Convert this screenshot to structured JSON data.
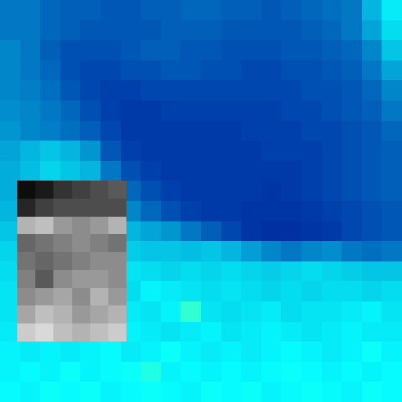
{
  "chart_data": {
    "type": "heatmap",
    "color": "jet",
    "zlim": [
      0,
      1
    ],
    "tick_labels": false,
    "cells": [
      [
        0.2,
        0.2,
        0.18,
        0.17,
        0.17,
        0.16,
        0.16,
        0.17,
        0.17,
        0.18,
        0.18,
        0.17,
        0.17,
        0.16,
        0.17,
        0.18,
        0.19,
        0.2,
        0.28,
        0.35
      ],
      [
        0.2,
        0.2,
        0.18,
        0.17,
        0.16,
        0.16,
        0.16,
        0.16,
        0.17,
        0.17,
        0.17,
        0.16,
        0.16,
        0.16,
        0.16,
        0.17,
        0.18,
        0.2,
        0.26,
        0.33
      ],
      [
        0.22,
        0.2,
        0.17,
        0.15,
        0.15,
        0.15,
        0.16,
        0.17,
        0.17,
        0.16,
        0.16,
        0.15,
        0.15,
        0.15,
        0.16,
        0.16,
        0.17,
        0.18,
        0.22,
        0.3
      ],
      [
        0.22,
        0.2,
        0.18,
        0.15,
        0.14,
        0.14,
        0.15,
        0.15,
        0.16,
        0.16,
        0.15,
        0.15,
        0.14,
        0.14,
        0.15,
        0.15,
        0.16,
        0.17,
        0.2,
        0.26
      ],
      [
        0.22,
        0.21,
        0.19,
        0.16,
        0.14,
        0.13,
        0.13,
        0.14,
        0.14,
        0.14,
        0.14,
        0.14,
        0.14,
        0.14,
        0.14,
        0.15,
        0.15,
        0.16,
        0.18,
        0.22
      ],
      [
        0.23,
        0.22,
        0.2,
        0.18,
        0.15,
        0.13,
        0.12,
        0.12,
        0.13,
        0.13,
        0.13,
        0.13,
        0.13,
        0.13,
        0.14,
        0.14,
        0.15,
        0.16,
        0.17,
        0.2
      ],
      [
        0.24,
        0.22,
        0.21,
        0.19,
        0.17,
        0.14,
        0.12,
        0.12,
        0.12,
        0.12,
        0.12,
        0.12,
        0.13,
        0.13,
        0.13,
        0.14,
        0.14,
        0.15,
        0.16,
        0.18
      ],
      [
        0.26,
        0.28,
        0.3,
        0.28,
        0.24,
        0.16,
        0.13,
        0.12,
        0.12,
        0.12,
        0.12,
        0.12,
        0.12,
        0.13,
        0.13,
        0.13,
        0.14,
        0.15,
        0.16,
        0.17
      ],
      [
        0.27,
        0.29,
        0.32,
        0.3,
        0.28,
        0.2,
        0.15,
        0.13,
        0.12,
        0.12,
        0.12,
        0.12,
        0.12,
        0.12,
        0.12,
        0.13,
        0.14,
        0.15,
        0.16,
        0.17
      ],
      [
        0.27,
        0.28,
        0.3,
        0.3,
        0.28,
        0.24,
        0.18,
        0.15,
        0.13,
        0.12,
        0.12,
        0.12,
        0.12,
        0.11,
        0.12,
        0.13,
        0.14,
        0.15,
        0.16,
        0.17
      ],
      [
        0.28,
        0.29,
        0.3,
        0.3,
        0.3,
        0.27,
        0.22,
        0.18,
        0.15,
        0.13,
        0.12,
        0.12,
        0.11,
        0.11,
        0.11,
        0.12,
        0.13,
        0.14,
        0.15,
        0.16
      ],
      [
        0.3,
        0.3,
        0.3,
        0.31,
        0.3,
        0.3,
        0.28,
        0.26,
        0.24,
        0.2,
        0.17,
        0.14,
        0.11,
        0.1,
        0.1,
        0.11,
        0.12,
        0.14,
        0.15,
        0.16
      ],
      [
        0.32,
        0.32,
        0.33,
        0.33,
        0.32,
        0.32,
        0.31,
        0.3,
        0.3,
        0.29,
        0.3,
        0.28,
        0.25,
        0.22,
        0.2,
        0.22,
        0.23,
        0.2,
        0.19,
        0.2
      ],
      [
        0.33,
        0.33,
        0.33,
        0.34,
        0.33,
        0.33,
        0.34,
        0.33,
        0.32,
        0.33,
        0.32,
        0.33,
        0.32,
        0.31,
        0.32,
        0.33,
        0.32,
        0.31,
        0.3,
        0.3
      ],
      [
        0.34,
        0.33,
        0.35,
        0.34,
        0.34,
        0.34,
        0.33,
        0.36,
        0.35,
        0.34,
        0.33,
        0.34,
        0.33,
        0.32,
        0.33,
        0.32,
        0.33,
        0.33,
        0.32,
        0.33
      ],
      [
        0.34,
        0.35,
        0.34,
        0.34,
        0.35,
        0.36,
        0.35,
        0.34,
        0.36,
        0.42,
        0.34,
        0.33,
        0.34,
        0.35,
        0.33,
        0.34,
        0.34,
        0.35,
        0.36,
        0.34
      ],
      [
        0.35,
        0.34,
        0.35,
        0.36,
        0.34,
        0.35,
        0.36,
        0.35,
        0.34,
        0.35,
        0.36,
        0.34,
        0.35,
        0.36,
        0.35,
        0.34,
        0.35,
        0.36,
        0.35,
        0.35
      ],
      [
        0.36,
        0.35,
        0.36,
        0.35,
        0.36,
        0.37,
        0.35,
        0.36,
        0.38,
        0.36,
        0.35,
        0.36,
        0.35,
        0.36,
        0.37,
        0.36,
        0.35,
        0.36,
        0.38,
        0.36
      ],
      [
        0.36,
        0.37,
        0.36,
        0.38,
        0.36,
        0.37,
        0.38,
        0.4,
        0.36,
        0.37,
        0.36,
        0.37,
        0.36,
        0.37,
        0.38,
        0.37,
        0.36,
        0.37,
        0.36,
        0.37
      ],
      [
        0.37,
        0.36,
        0.38,
        0.37,
        0.38,
        0.36,
        0.37,
        0.38,
        0.37,
        0.36,
        0.38,
        0.37,
        0.38,
        0.36,
        0.37,
        0.38,
        0.37,
        0.36,
        0.38,
        0.37
      ]
    ],
    "inset": {
      "type": "heatmap",
      "color": "greys",
      "zlim": [
        0,
        1
      ],
      "cells": [
        [
          0.05,
          0.1,
          0.2,
          0.25,
          0.3,
          0.35
        ],
        [
          0.15,
          0.25,
          0.3,
          0.3,
          0.3,
          0.3
        ],
        [
          0.7,
          0.75,
          0.6,
          0.55,
          0.6,
          0.7
        ],
        [
          0.4,
          0.45,
          0.5,
          0.55,
          0.5,
          0.45
        ],
        [
          0.45,
          0.4,
          0.45,
          0.5,
          0.55,
          0.55
        ],
        [
          0.5,
          0.35,
          0.55,
          0.6,
          0.6,
          0.55
        ],
        [
          0.55,
          0.6,
          0.65,
          0.55,
          0.7,
          0.6
        ],
        [
          0.65,
          0.75,
          0.7,
          0.6,
          0.65,
          0.7
        ],
        [
          0.8,
          0.85,
          0.75,
          0.7,
          0.75,
          0.8
        ]
      ]
    }
  }
}
